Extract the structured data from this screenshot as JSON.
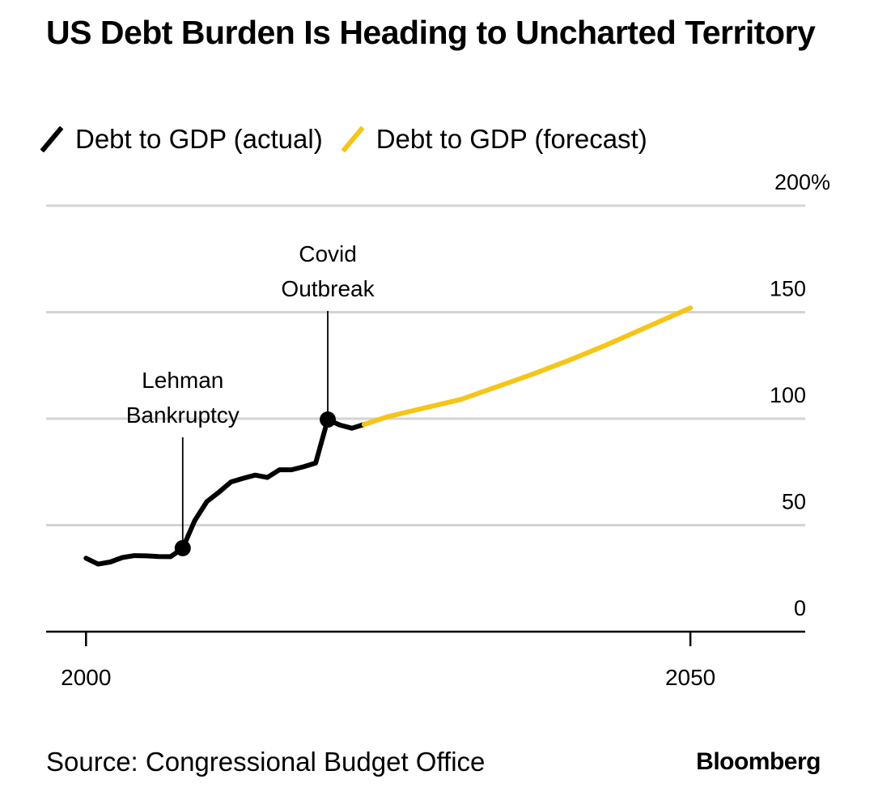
{
  "title": "US Debt Burden Is Heading to Uncharted Territory",
  "legend": [
    {
      "label": "Debt to GDP (actual)",
      "color": "#000000"
    },
    {
      "label": "Debt to GDP (forecast)",
      "color": "#f5c518"
    }
  ],
  "source": "Source: Congressional Budget Office",
  "brand": "Bloomberg",
  "chart_data": {
    "type": "line",
    "title": "US Debt Burden Is Heading to Uncharted Territory",
    "ylabel": "",
    "xlabel": "",
    "xlim": [
      1996.7,
      2059.5
    ],
    "ylim": [
      0,
      200
    ],
    "x_ticks": [
      2000,
      2050
    ],
    "y_ticks": [
      0,
      50,
      100,
      150,
      200
    ],
    "y_tick_labels": [
      "0",
      "50",
      "100",
      "150",
      "200%"
    ],
    "grid": "horizontal",
    "series": [
      {
        "name": "Debt to GDP (actual)",
        "color": "#000000",
        "x": [
          2000,
          2001,
          2002,
          2003,
          2004,
          2005,
          2006,
          2007,
          2008,
          2009,
          2010,
          2011,
          2012,
          2013,
          2014,
          2015,
          2016,
          2017,
          2018,
          2019,
          2020,
          2021,
          2022,
          2023
        ],
        "y": [
          34.5,
          31.7,
          32.7,
          34.8,
          35.7,
          35.6,
          35.3,
          35.2,
          39.2,
          52.2,
          61.1,
          65.5,
          70.3,
          72.0,
          73.5,
          72.4,
          76.0,
          76.0,
          77.4,
          79.2,
          99.6,
          97.0,
          95.5,
          97.3
        ]
      },
      {
        "name": "Debt to GDP (forecast)",
        "color": "#f5c518",
        "x": [
          2023,
          2025,
          2028,
          2031,
          2034,
          2037,
          2040,
          2043,
          2046,
          2050
        ],
        "y": [
          97.3,
          101,
          105,
          109,
          115,
          121,
          127.5,
          134.5,
          142,
          152
        ]
      }
    ],
    "annotations": [
      {
        "label_lines": [
          "Lehman",
          "Bankruptcy"
        ],
        "x": 2008,
        "y": 39.2
      },
      {
        "label_lines": [
          "Covid",
          "Outbreak"
        ],
        "x": 2020,
        "y": 99.6
      }
    ]
  }
}
